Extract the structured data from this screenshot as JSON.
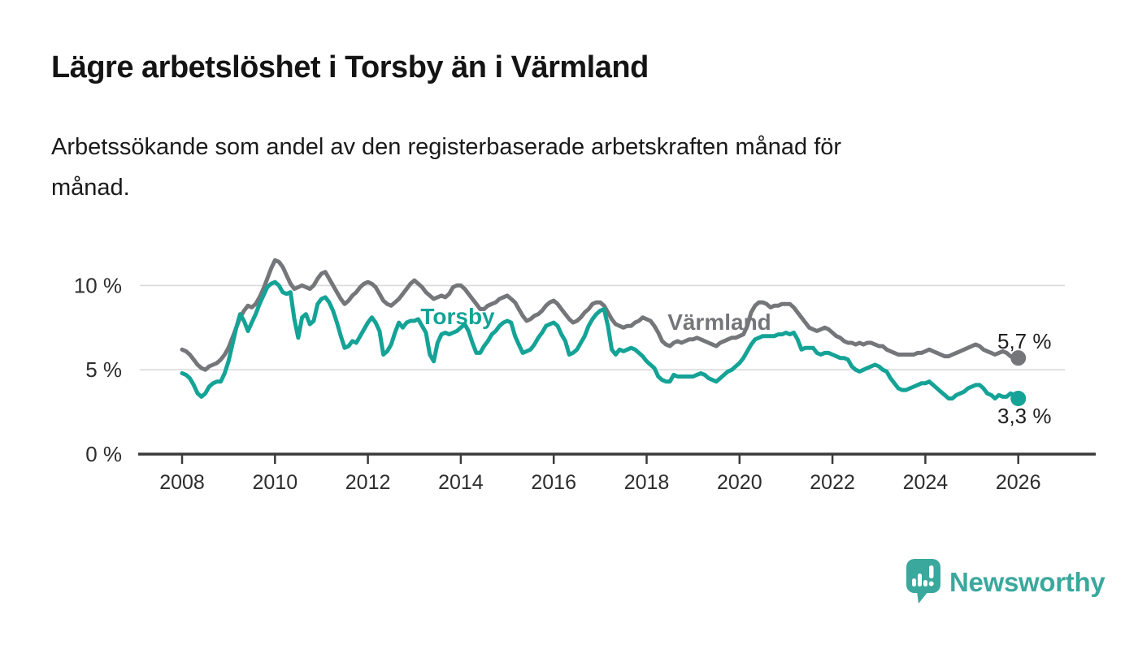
{
  "header": {
    "title": "Lägre arbetslöshet i Torsby än i Värmland",
    "subtitle_line1": "Arbetssökande som andel av den registerbaserade arbetskraften månad för",
    "subtitle_line2": "månad."
  },
  "chart_data": {
    "type": "line",
    "title": "Lägre arbetslöshet i Torsby än i Värmland",
    "subtitle": "Arbetssökande som andel av den registerbaserade arbetskraften månad för månad.",
    "unit": "%",
    "x_start_year": 2008,
    "x_step_months": 1,
    "x_ticks": [
      2008,
      2010,
      2012,
      2014,
      2016,
      2018,
      2020,
      2022,
      2024,
      2026
    ],
    "y_axis": {
      "range": [
        0,
        12.2
      ],
      "ticks": [
        {
          "label": "0 %",
          "value": 0
        },
        {
          "label": "5 %",
          "value": 5
        },
        {
          "label": "10 %",
          "value": 10
        }
      ],
      "grid": true
    },
    "legend_position": "inline-on-lines",
    "series": [
      {
        "name": "Värmland",
        "color": "#74767a",
        "end_label": "5,7 %",
        "end_value": 5.7,
        "values": [
          6.2,
          6.1,
          5.9,
          5.6,
          5.3,
          5.1,
          5.0,
          5.2,
          5.3,
          5.4,
          5.6,
          5.9,
          6.3,
          6.9,
          7.5,
          8.1,
          8.5,
          8.8,
          8.7,
          8.9,
          9.3,
          9.8,
          10.4,
          11.0,
          11.5,
          11.4,
          11.1,
          10.6,
          10.1,
          9.8,
          9.9,
          10.0,
          9.9,
          9.8,
          10.0,
          10.4,
          10.7,
          10.8,
          10.4,
          10.0,
          9.6,
          9.2,
          8.9,
          9.1,
          9.4,
          9.6,
          9.9,
          10.1,
          10.2,
          10.1,
          9.9,
          9.5,
          9.1,
          8.9,
          8.8,
          9.0,
          9.2,
          9.5,
          9.8,
          10.1,
          10.3,
          10.1,
          9.9,
          9.6,
          9.4,
          9.2,
          9.3,
          9.4,
          9.3,
          9.5,
          9.9,
          10.0,
          10.0,
          9.8,
          9.5,
          9.2,
          8.9,
          8.6,
          8.6,
          8.8,
          8.9,
          9.0,
          9.2,
          9.3,
          9.4,
          9.2,
          9.0,
          8.6,
          8.2,
          7.9,
          8.0,
          8.2,
          8.3,
          8.5,
          8.8,
          9.0,
          9.1,
          8.9,
          8.6,
          8.3,
          8.0,
          7.8,
          7.9,
          8.1,
          8.4,
          8.6,
          8.9,
          9.0,
          9.0,
          8.8,
          8.4,
          8.0,
          7.7,
          7.6,
          7.5,
          7.6,
          7.6,
          7.8,
          7.9,
          8.1,
          8.0,
          7.9,
          7.6,
          7.2,
          6.7,
          6.5,
          6.4,
          6.6,
          6.7,
          6.6,
          6.7,
          6.8,
          6.8,
          6.9,
          6.8,
          6.7,
          6.6,
          6.5,
          6.4,
          6.6,
          6.7,
          6.8,
          6.9,
          6.9,
          7.0,
          7.1,
          7.6,
          8.4,
          8.8,
          9.0,
          9.0,
          8.9,
          8.7,
          8.8,
          8.8,
          8.9,
          8.9,
          8.9,
          8.7,
          8.4,
          8.1,
          7.8,
          7.5,
          7.4,
          7.3,
          7.4,
          7.5,
          7.4,
          7.2,
          7.0,
          6.9,
          6.7,
          6.6,
          6.6,
          6.5,
          6.6,
          6.5,
          6.6,
          6.6,
          6.5,
          6.4,
          6.4,
          6.2,
          6.1,
          6.0,
          5.9,
          5.9,
          5.9,
          5.9,
          5.9,
          6.0,
          6.0,
          6.1,
          6.2,
          6.1,
          6.0,
          5.9,
          5.8,
          5.8,
          5.9,
          6.0,
          6.1,
          6.2,
          6.3,
          6.4,
          6.5,
          6.4,
          6.2,
          6.1,
          6.0,
          5.9,
          6.0,
          6.1,
          6.0,
          5.8,
          5.8,
          5.7
        ]
      },
      {
        "name": "Torsby",
        "color": "#14a396",
        "end_label": "3,3 %",
        "end_value": 3.3,
        "values": [
          4.8,
          4.7,
          4.5,
          4.1,
          3.6,
          3.4,
          3.6,
          4.0,
          4.2,
          4.3,
          4.3,
          4.8,
          5.5,
          6.5,
          7.5,
          8.3,
          7.9,
          7.3,
          7.8,
          8.3,
          8.9,
          9.4,
          9.9,
          10.1,
          10.2,
          10.0,
          9.6,
          9.5,
          9.6,
          8.0,
          6.9,
          8.1,
          8.3,
          7.7,
          7.9,
          8.9,
          9.2,
          9.3,
          9.0,
          8.5,
          7.8,
          7.0,
          6.3,
          6.4,
          6.7,
          6.6,
          7.0,
          7.4,
          7.8,
          8.1,
          7.8,
          7.3,
          5.9,
          6.1,
          6.5,
          7.2,
          7.8,
          7.5,
          7.8,
          7.9,
          7.9,
          8.0,
          7.6,
          7.2,
          5.9,
          5.5,
          6.6,
          7.1,
          7.2,
          7.1,
          7.2,
          7.3,
          7.5,
          7.7,
          7.3,
          6.6,
          6.0,
          6.0,
          6.4,
          6.7,
          7.1,
          7.3,
          7.6,
          7.8,
          7.9,
          7.8,
          7.0,
          6.5,
          6.0,
          6.1,
          6.2,
          6.5,
          6.9,
          7.2,
          7.6,
          7.7,
          7.8,
          7.6,
          7.1,
          6.7,
          5.9,
          6.0,
          6.2,
          6.6,
          7.0,
          7.6,
          8.0,
          8.3,
          8.5,
          8.6,
          7.6,
          6.2,
          5.9,
          6.2,
          6.1,
          6.2,
          6.3,
          6.2,
          6.0,
          5.8,
          5.5,
          5.3,
          5.1,
          4.6,
          4.4,
          4.3,
          4.3,
          4.7,
          4.6,
          4.6,
          4.6,
          4.6,
          4.6,
          4.7,
          4.8,
          4.7,
          4.5,
          4.4,
          4.3,
          4.5,
          4.7,
          4.9,
          5.0,
          5.2,
          5.4,
          5.7,
          6.1,
          6.5,
          6.8,
          6.9,
          7.0,
          7.0,
          7.0,
          7.0,
          7.1,
          7.1,
          7.2,
          7.1,
          7.2,
          6.8,
          6.2,
          6.3,
          6.3,
          6.3,
          6.0,
          5.9,
          6.0,
          6.0,
          5.9,
          5.8,
          5.7,
          5.7,
          5.6,
          5.2,
          5.0,
          4.9,
          5.0,
          5.1,
          5.2,
          5.3,
          5.2,
          5.0,
          4.9,
          4.5,
          4.2,
          3.9,
          3.8,
          3.8,
          3.9,
          4.0,
          4.1,
          4.2,
          4.2,
          4.3,
          4.1,
          3.9,
          3.7,
          3.5,
          3.3,
          3.3,
          3.5,
          3.6,
          3.7,
          3.9,
          4.0,
          4.1,
          4.1,
          3.9,
          3.6,
          3.5,
          3.3,
          3.5,
          3.4,
          3.4,
          3.6,
          3.5,
          3.3
        ]
      }
    ]
  },
  "colors": {
    "accent_teal": "#14a396",
    "line_gray": "#74767a",
    "grid": "#dadada",
    "axis": "#3a3a3a",
    "text": "#1a1a1a"
  },
  "logo": {
    "text": "Newsworthy",
    "color": "#3aa89d",
    "icon": "newsworthy-speech-bubble-bar-chart-icon"
  }
}
